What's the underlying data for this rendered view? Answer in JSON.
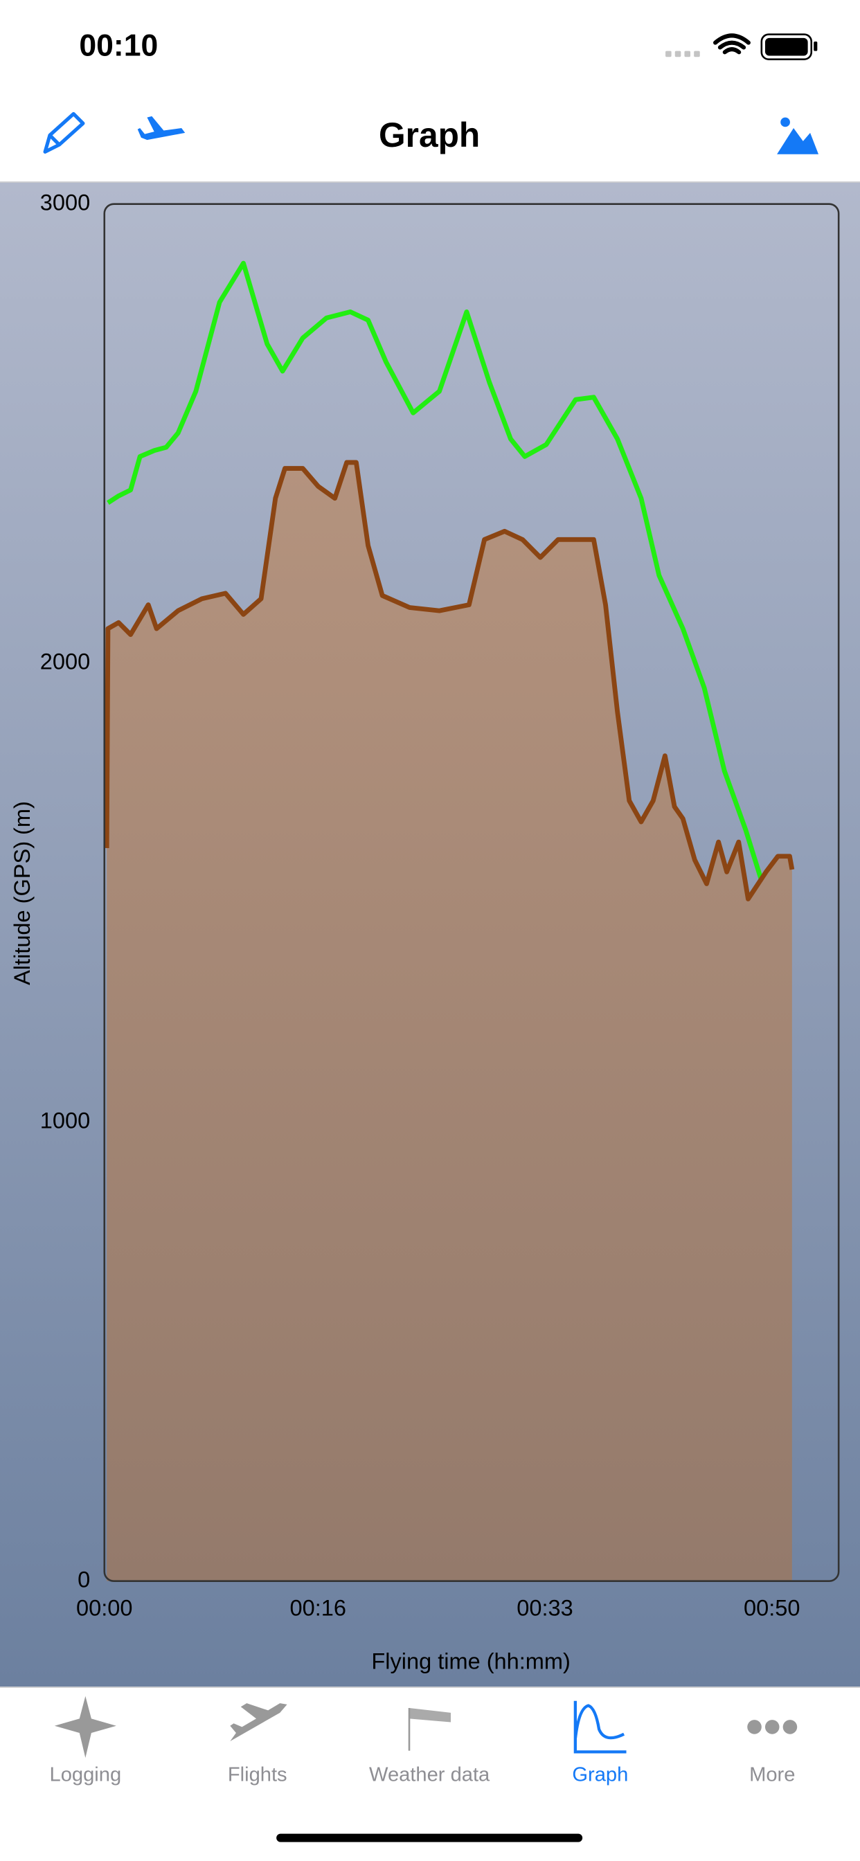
{
  "status_bar": {
    "time": "00:10"
  },
  "nav_bar": {
    "title": "Graph"
  },
  "chart_data": {
    "type": "line",
    "y_label": "Altitude (GPS) (m)",
    "x_label": "Flying time (hh:mm)",
    "xlim": [
      0,
      55
    ],
    "xticks": [
      {
        "value": 0,
        "label": "00:00"
      },
      {
        "value": 16,
        "label": "00:16"
      },
      {
        "value": 33,
        "label": "00:33"
      },
      {
        "value": 50,
        "label": "00:50"
      }
    ],
    "ylim": [
      0,
      3000
    ],
    "yticks": [
      0,
      1000,
      2000,
      3000
    ],
    "grid": false,
    "series": [
      {
        "color": "#22ee11",
        "x": [
          0.27,
          1.07,
          1.96,
          2.67,
          3.74,
          4.63,
          5.52,
          6.85,
          8.63,
          10.41,
          12.19,
          13.35,
          14.86,
          16.64,
          18.42,
          19.75,
          21.09,
          23.13,
          25.09,
          27.14,
          28.83,
          30.43,
          31.49,
          33.1,
          35.3,
          36.65,
          38.43,
          40.21,
          41.55,
          43.33,
          44.93,
          46.44,
          48.04,
          49.56
        ],
        "values": [
          2349,
          2364,
          2377,
          2450,
          2463,
          2470,
          2501,
          2592,
          2786,
          2871,
          2695,
          2636,
          2708,
          2752,
          2765,
          2747,
          2656,
          2545,
          2592,
          2765,
          2612,
          2488,
          2450,
          2476,
          2574,
          2579,
          2488,
          2359,
          2191,
          2075,
          1946,
          1765,
          1636,
          1494
        ]
      },
      {
        "color": "#8b4513",
        "area": true,
        "fill_color": "#b4937e",
        "x": [
          0.18,
          0.27,
          1.07,
          1.96,
          3.29,
          3.91,
          5.52,
          7.3,
          9.07,
          10.41,
          11.74,
          12.81,
          13.52,
          14.86,
          16.01,
          17.26,
          18.15,
          18.86,
          19.75,
          20.82,
          22.86,
          25.09,
          27.31,
          28.47,
          29.98,
          31.32,
          32.65,
          33.99,
          36.65,
          37.54,
          38.43,
          39.32,
          40.21,
          41.1,
          41.99,
          42.7,
          43.33,
          44.22,
          45.11,
          46.0,
          46.62,
          47.51,
          48.22,
          49.56,
          50.45,
          51.33,
          51.51
        ],
        "values": [
          1597,
          2075,
          2088,
          2062,
          2127,
          2075,
          2114,
          2140,
          2152,
          2106,
          2140,
          2359,
          2424,
          2424,
          2385,
          2359,
          2437,
          2437,
          2256,
          2147,
          2121,
          2114,
          2127,
          2269,
          2287,
          2269,
          2230,
          2269,
          2269,
          2127,
          1894,
          1700,
          1654,
          1700,
          1798,
          1687,
          1661,
          1571,
          1519,
          1610,
          1545,
          1610,
          1486,
          1545,
          1579,
          1579,
          1550
        ]
      }
    ]
  },
  "tab_bar": {
    "items": [
      "Logging",
      "Flights",
      "Weather data",
      "Graph",
      "More"
    ],
    "selected": 3
  }
}
